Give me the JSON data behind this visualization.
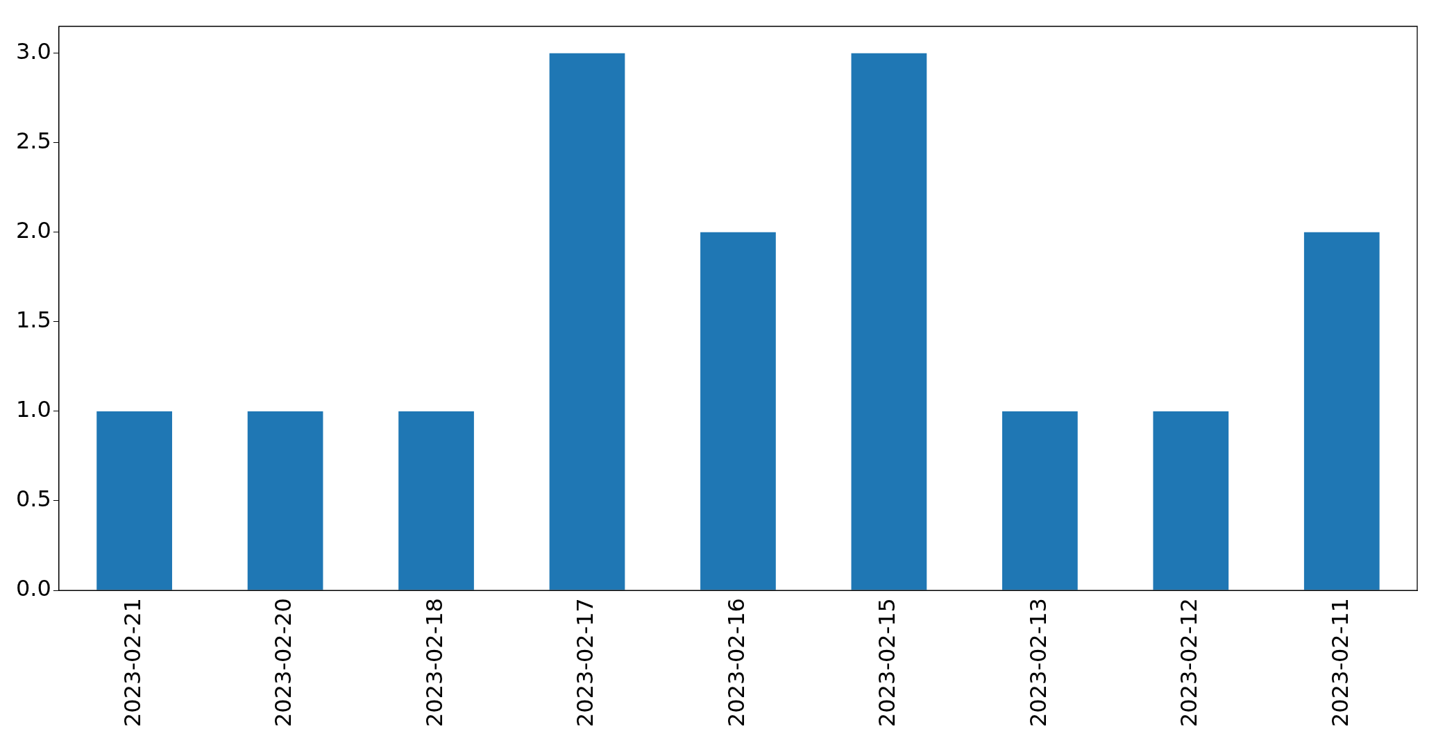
{
  "chart_data": {
    "type": "bar",
    "categories": [
      "2023-02-21",
      "2023-02-20",
      "2023-02-18",
      "2023-02-17",
      "2023-02-16",
      "2023-02-15",
      "2023-02-13",
      "2023-02-12",
      "2023-02-11"
    ],
    "values": [
      1,
      1,
      1,
      3,
      2,
      3,
      1,
      1,
      2
    ],
    "color": "#1f77b4",
    "ylim": [
      0,
      3.15
    ],
    "yticks": [
      {
        "value": 0,
        "label": "0.0"
      },
      {
        "value": 0.5,
        "label": "0.5"
      },
      {
        "value": 1,
        "label": "1.0"
      },
      {
        "value": 1.5,
        "label": "1.5"
      },
      {
        "value": 2,
        "label": "2.0"
      },
      {
        "value": 2.5,
        "label": "2.5"
      },
      {
        "value": 3,
        "label": "3.0"
      }
    ]
  }
}
